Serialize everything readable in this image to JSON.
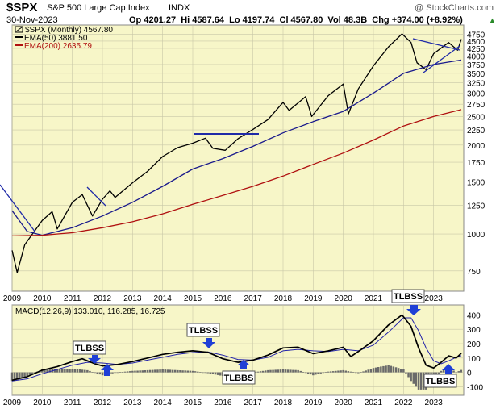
{
  "header": {
    "symbol": "$SPX",
    "name": "S&P 500 Large Cap Index",
    "exchange": "INDX",
    "credit": "@ StockCharts.com",
    "date": "30-Nov-2023",
    "ohlc": "Op 4201.27  Hi 4587.64  Lo 4197.74  Cl 4567.80  Vol 48.3B  Chg +374.00 (+8.92%)",
    "ohlc_up_arrow": "▲"
  },
  "legend": {
    "price": "$SPX (Monthly) 4567.80",
    "ema50": "EMA(50) 3881.50",
    "ema200": "EMA(200) 2635.79",
    "macd": "MACD(12,26,9) 133.010, 116.285, 16.725"
  },
  "colors": {
    "panel_bg": "#f7f6c8",
    "grid": "#c9c8a8",
    "price": "#000000",
    "ema50": "#1a1a8c",
    "ema200": "#b01010",
    "macd": "#000000",
    "signal": "#2222aa",
    "hist": "#6a6a6a",
    "annotation_line": "#1f2aa8",
    "callout_bg": "#ffffff",
    "arrow": "#1f3fd6"
  },
  "annotations": {
    "tlbss_1": "TLBSS",
    "tlbss_2": "TLBSS",
    "tlbss_3": "TLBSS",
    "tlbbs_1": "TLBBS",
    "tlbbs_2": "TLBBS"
  },
  "chart_data": [
    {
      "type": "line",
      "yscale": "log",
      "ylim": [
        640,
        5100
      ],
      "xlim": [
        2009.0,
        2024.0
      ],
      "y_ticks": [
        750,
        1000,
        1250,
        1500,
        1750,
        2000,
        2250,
        2500,
        2750,
        3000,
        3250,
        3500,
        3750,
        4000,
        4250,
        4500,
        4750
      ],
      "x_ticks": [
        "2009",
        "2010",
        "2011",
        "2012",
        "2013",
        "2014",
        "2015",
        "2016",
        "2017",
        "2018",
        "2019",
        "2020",
        "2021",
        "2022",
        "2023"
      ],
      "grid": true,
      "series": [
        {
          "name": "$SPX (Monthly)",
          "x": [
            2009.0,
            2009.17,
            2009.42,
            2010.0,
            2010.33,
            2010.5,
            2011.0,
            2011.33,
            2011.67,
            2012.0,
            2012.25,
            2012.42,
            2013.0,
            2013.5,
            2014.0,
            2014.5,
            2015.0,
            2015.42,
            2015.67,
            2016.08,
            2016.5,
            2017.0,
            2017.5,
            2018.0,
            2018.2,
            2018.75,
            2018.95,
            2019.5,
            2020.0,
            2020.17,
            2020.5,
            2021.0,
            2021.5,
            2021.95,
            2022.25,
            2022.45,
            2022.75,
            2023.0,
            2023.5,
            2023.8,
            2023.92
          ],
          "values": [
            880,
            740,
            920,
            1110,
            1190,
            1040,
            1280,
            1360,
            1150,
            1310,
            1400,
            1330,
            1490,
            1630,
            1830,
            1960,
            2030,
            2110,
            1950,
            1920,
            2100,
            2260,
            2440,
            2790,
            2620,
            2920,
            2500,
            2940,
            3220,
            2550,
            3100,
            3710,
            4300,
            4760,
            4450,
            3800,
            3600,
            4080,
            4450,
            4190,
            4567
          ]
        },
        {
          "name": "EMA(50)",
          "x": [
            2009.0,
            2009.5,
            2010.0,
            2011.0,
            2012.0,
            2013.0,
            2014.0,
            2015.0,
            2016.0,
            2017.0,
            2018.0,
            2019.0,
            2020.0,
            2021.0,
            2022.0,
            2023.0,
            2023.92
          ],
          "values": [
            1200,
            1020,
            990,
            1050,
            1150,
            1280,
            1450,
            1660,
            1800,
            1980,
            2200,
            2400,
            2600,
            3000,
            3500,
            3750,
            3881
          ]
        },
        {
          "name": "EMA(200)",
          "x": [
            2009.0,
            2010.0,
            2011.0,
            2012.0,
            2013.0,
            2014.0,
            2015.0,
            2016.0,
            2017.0,
            2018.0,
            2019.0,
            2020.0,
            2021.0,
            2022.0,
            2023.0,
            2023.92
          ],
          "values": [
            985,
            990,
            1010,
            1050,
            1100,
            1170,
            1260,
            1350,
            1450,
            1570,
            1720,
            1880,
            2080,
            2320,
            2500,
            2636
          ]
        }
      ]
    },
    {
      "type": "line",
      "ylim": [
        -160,
        470
      ],
      "xlim": [
        2009.0,
        2024.0
      ],
      "y_ticks": [
        400,
        300,
        200,
        100,
        0,
        -100
      ],
      "x_ticks": [
        "2009",
        "2010",
        "2011",
        "2012",
        "2013",
        "2014",
        "2015",
        "2016",
        "2017",
        "2018",
        "2019",
        "2020",
        "2021",
        "2022",
        "2023"
      ],
      "grid": true,
      "series": [
        {
          "name": "MACD",
          "x": [
            2009.0,
            2009.5,
            2010.0,
            2010.5,
            2011.0,
            2011.33,
            2011.75,
            2012.0,
            2012.5,
            2013.0,
            2013.5,
            2014.0,
            2014.5,
            2015.0,
            2015.5,
            2016.0,
            2016.5,
            2017.0,
            2017.5,
            2018.0,
            2018.5,
            2019.0,
            2019.5,
            2020.0,
            2020.25,
            2020.5,
            2021.0,
            2021.5,
            2021.95,
            2022.25,
            2022.5,
            2022.75,
            2023.0,
            2023.25,
            2023.5,
            2023.75,
            2023.92
          ],
          "values": [
            -55,
            -30,
            15,
            40,
            75,
            95,
            60,
            45,
            55,
            75,
            100,
            125,
            140,
            150,
            140,
            95,
            70,
            85,
            120,
            170,
            175,
            130,
            150,
            175,
            110,
            145,
            220,
            330,
            400,
            320,
            170,
            50,
            30,
            70,
            115,
            100,
            133
          ]
        },
        {
          "name": "Signal",
          "x": [
            2009.0,
            2009.5,
            2010.0,
            2010.5,
            2011.0,
            2011.5,
            2012.0,
            2012.5,
            2013.0,
            2013.5,
            2014.0,
            2014.5,
            2015.0,
            2015.5,
            2016.0,
            2016.5,
            2017.0,
            2017.5,
            2018.0,
            2018.5,
            2019.0,
            2019.5,
            2020.0,
            2020.5,
            2021.0,
            2021.5,
            2022.0,
            2022.25,
            2022.5,
            2022.75,
            2023.0,
            2023.25,
            2023.5,
            2023.75,
            2023.92
          ],
          "values": [
            -60,
            -45,
            -10,
            20,
            50,
            70,
            65,
            55,
            65,
            85,
            105,
            125,
            138,
            142,
            120,
            90,
            85,
            105,
            150,
            160,
            150,
            145,
            160,
            150,
            190,
            280,
            380,
            380,
            290,
            170,
            80,
            60,
            80,
            105,
            116
          ]
        },
        {
          "name": "Histogram",
          "x": [
            2009.0,
            2009.5,
            2010.0,
            2010.5,
            2011.0,
            2011.5,
            2012.0,
            2012.5,
            2013.0,
            2013.5,
            2014.0,
            2014.5,
            2015.0,
            2015.5,
            2016.0,
            2016.5,
            2017.0,
            2017.5,
            2018.0,
            2018.5,
            2019.0,
            2019.5,
            2020.0,
            2020.5,
            2021.0,
            2021.5,
            2022.0,
            2022.25,
            2022.5,
            2022.75,
            2023.0,
            2023.25,
            2023.5,
            2023.75,
            2023.92
          ],
          "values": [
            -60,
            -25,
            20,
            20,
            25,
            15,
            -20,
            0,
            10,
            15,
            20,
            15,
            10,
            -5,
            -25,
            -20,
            0,
            15,
            20,
            15,
            -20,
            5,
            15,
            -5,
            30,
            50,
            20,
            -60,
            -120,
            -120,
            -50,
            10,
            35,
            0,
            17
          ]
        }
      ]
    }
  ]
}
